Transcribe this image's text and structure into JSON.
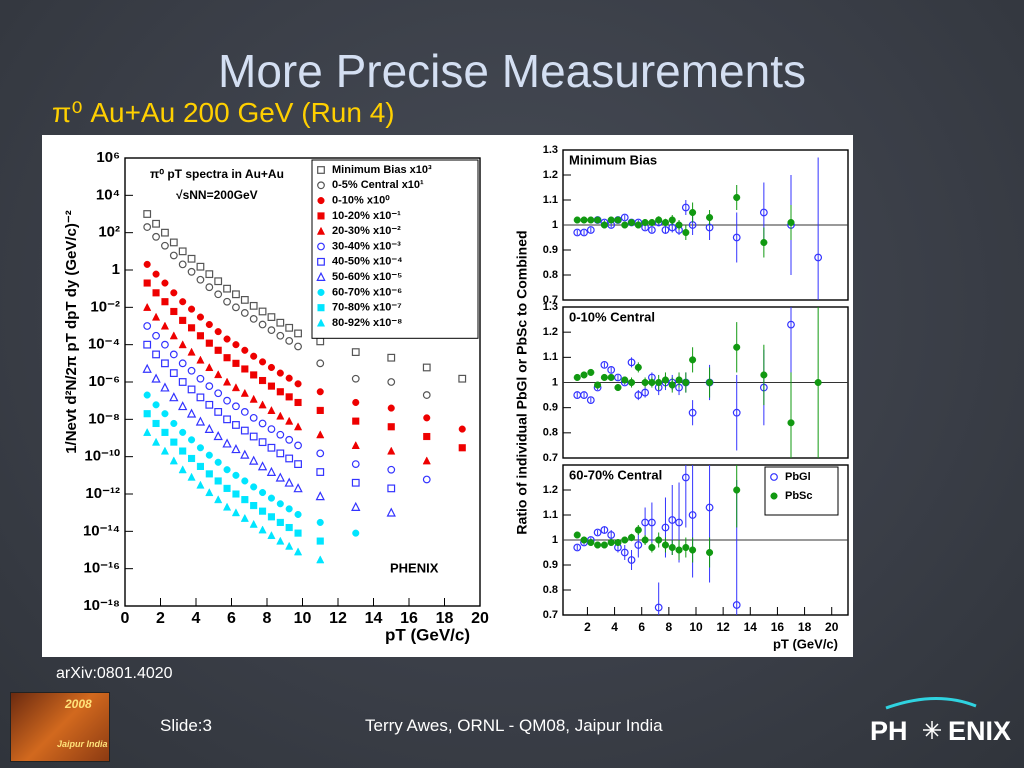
{
  "title": "More Precise Measurements",
  "subtitle": "π⁰ Au+Au 200 GeV (Run 4)",
  "citation": "arXiv:0801.4020",
  "footer": {
    "slide": "Slide:3",
    "author": "Terry Awes, ORNL - QM08, Jaipur India",
    "logo_left_year": "2008",
    "logo_left_text": "Jaipur India",
    "logo_right_left": "PH",
    "logo_right_right": "ENIX"
  },
  "chart_data": [
    {
      "type": "scatter",
      "log_y": true,
      "ylabel": "1/Nevt d²N/2π pT dpT dy (GeV/c)⁻²",
      "xlabel": "pT (GeV/c)",
      "annotations": [
        "π⁰ pT spectra in Au+Au",
        "√sNN=200GeV",
        "PHENIX"
      ],
      "legend": "upper right",
      "xlim": [
        0,
        20
      ],
      "xticks": [
        0,
        2,
        4,
        6,
        8,
        10,
        12,
        14,
        16,
        18,
        20
      ],
      "ylim": [
        1e-18,
        1000000.0
      ],
      "yticks": [
        {
          "value": 1000000.0,
          "label": "10⁶"
        },
        {
          "value": 10000.0,
          "label": "10⁴"
        },
        {
          "value": 100.0,
          "label": "10²"
        },
        1,
        {
          "value": 0.01,
          "label": "10⁻²"
        },
        {
          "value": 0.0001,
          "label": "10⁻⁴"
        },
        {
          "value": 1e-06,
          "label": "10⁻⁶"
        },
        {
          "value": 1e-08,
          "label": "10⁻⁸"
        },
        {
          "value": 1e-10,
          "label": "10⁻¹⁰"
        },
        {
          "value": 1e-12,
          "label": "10⁻¹²"
        },
        {
          "value": 1e-14,
          "label": "10⁻¹⁴"
        },
        {
          "value": 1e-16,
          "label": "10⁻¹⁶"
        },
        {
          "value": 1e-18,
          "label": "10⁻¹⁸"
        }
      ],
      "x": [
        1.25,
        1.75,
        2.25,
        2.75,
        3.25,
        3.75,
        4.25,
        4.75,
        5.25,
        5.75,
        6.25,
        6.75,
        7.25,
        7.75,
        8.25,
        8.75,
        9.25,
        9.75,
        11,
        13,
        15,
        17,
        19
      ],
      "series": [
        {
          "name": "Minimum Bias x10³",
          "color": "#555555",
          "marker": "square-open",
          "values": [
            1000.0,
            300.0,
            100.0,
            30.0,
            10.0,
            4.0,
            1.5,
            0.6,
            0.25,
            0.1,
            0.05,
            0.025,
            0.012,
            0.006,
            0.003,
            0.0015,
            0.0008,
            0.0004,
            0.00015,
            4e-05,
            2e-05,
            6e-06,
            1.5e-06
          ]
        },
        {
          "name": "0-5% Central x10¹",
          "color": "#555555",
          "marker": "circle-open",
          "values": [
            200.0,
            60.0,
            20.0,
            6.0,
            2.0,
            0.8,
            0.3,
            0.12,
            0.05,
            0.02,
            0.01,
            0.005,
            0.0024,
            0.0012,
            0.0006,
            0.0003,
            0.00016,
            8e-05,
            1e-05,
            1.5e-06,
            1e-06,
            2e-07,
            null
          ]
        },
        {
          "name": "0-10% x10⁰",
          "color": "#ee0000",
          "marker": "circle",
          "values": [
            2.0,
            0.6,
            0.2,
            0.06,
            0.02,
            0.008,
            0.003,
            0.0012,
            0.0005,
            0.0002,
            0.0001,
            5e-05,
            2.4e-05,
            1.2e-05,
            6e-06,
            3e-06,
            1.6e-06,
            8e-07,
            3e-07,
            8e-08,
            4e-08,
            1.2e-08,
            3e-09
          ]
        },
        {
          "name": "10-20% x10⁻¹",
          "color": "#ee0000",
          "marker": "square",
          "values": [
            0.2,
            0.06,
            0.02,
            0.006,
            0.002,
            0.0008,
            0.0003,
            0.00012,
            5e-05,
            2e-05,
            1e-05,
            5e-06,
            2.4e-06,
            1.2e-06,
            6e-07,
            3e-07,
            1.6e-07,
            8e-08,
            3e-08,
            8e-09,
            4e-09,
            1.2e-09,
            3e-10
          ]
        },
        {
          "name": "20-30% x10⁻²",
          "color": "#ee0000",
          "marker": "triangle",
          "values": [
            0.01,
            0.003,
            0.001,
            0.0003,
            0.0001,
            4e-05,
            1.5e-05,
            6e-06,
            2.5e-06,
            1e-06,
            5e-07,
            2.5e-07,
            1.2e-07,
            6e-08,
            3e-08,
            1.5e-08,
            8e-09,
            4e-09,
            1.5e-09,
            4e-10,
            2e-10,
            6e-11,
            null
          ]
        },
        {
          "name": "30-40% x10⁻³",
          "color": "#3333ff",
          "marker": "circle-open",
          "values": [
            0.001,
            0.0003,
            0.0001,
            3e-05,
            1e-05,
            4e-06,
            1.5e-06,
            6e-07,
            2.5e-07,
            1e-07,
            5e-08,
            2.5e-08,
            1.2e-08,
            6e-09,
            3e-09,
            1.5e-09,
            8e-10,
            4e-10,
            1.5e-10,
            4e-11,
            2e-11,
            6e-12,
            null
          ]
        },
        {
          "name": "40-50% x10⁻⁴",
          "color": "#3333ff",
          "marker": "square-open",
          "values": [
            0.0001,
            3e-05,
            1e-05,
            3e-06,
            1e-06,
            4e-07,
            1.5e-07,
            6e-08,
            2.5e-08,
            1e-08,
            5e-09,
            2.5e-09,
            1.2e-09,
            6e-10,
            3e-10,
            1.5e-10,
            8e-11,
            4e-11,
            1.5e-11,
            4e-12,
            2e-12,
            null,
            null
          ]
        },
        {
          "name": "50-60% x10⁻⁵",
          "color": "#3333ff",
          "marker": "triangle-open",
          "values": [
            5e-06,
            1.5e-06,
            5e-07,
            1.5e-07,
            5e-08,
            2e-08,
            7.5e-09,
            3e-09,
            1.25e-09,
            5e-10,
            2.5e-10,
            1.25e-10,
            6e-11,
            3e-11,
            1.5e-11,
            7.5e-12,
            4e-12,
            2e-12,
            7.5e-13,
            2e-13,
            1e-13,
            null,
            null
          ]
        },
        {
          "name": "60-70% x10⁻⁶",
          "color": "#00e5ff",
          "marker": "circle",
          "values": [
            2e-07,
            6e-08,
            2e-08,
            6e-09,
            2e-09,
            8e-10,
            3e-10,
            1.2e-10,
            5e-11,
            2e-11,
            1e-11,
            5e-12,
            2.4e-12,
            1.2e-12,
            6e-13,
            3e-13,
            1.6e-13,
            8e-14,
            3e-14,
            8e-15,
            null,
            null,
            null
          ]
        },
        {
          "name": "70-80% x10⁻⁷",
          "color": "#00e5ff",
          "marker": "square",
          "values": [
            2e-08,
            6e-09,
            2e-09,
            6e-10,
            2e-10,
            8e-11,
            3e-11,
            1.2e-11,
            5e-12,
            2e-12,
            1e-12,
            5e-13,
            2.4e-13,
            1.2e-13,
            6e-14,
            3e-14,
            1.6e-14,
            8e-15,
            3e-15,
            null,
            null,
            null,
            null
          ]
        },
        {
          "name": "80-92% x10⁻⁸",
          "color": "#00e5ff",
          "marker": "triangle",
          "values": [
            2e-09,
            6e-10,
            2e-10,
            6e-11,
            2e-11,
            8e-12,
            3e-12,
            1.2e-12,
            5e-13,
            2e-13,
            1e-13,
            5e-14,
            2.4e-14,
            1.2e-14,
            6e-15,
            3e-15,
            1.6e-15,
            8e-16,
            3e-16,
            null,
            null,
            null,
            null
          ]
        }
      ]
    },
    {
      "type": "scatter",
      "title": "Minimum Bias",
      "hline": 1,
      "xlim": [
        0.2,
        21.2
      ],
      "ylim": [
        0.7,
        1.3
      ],
      "yticks": [
        0.7,
        0.8,
        0.9,
        1,
        1.1,
        1.2,
        1.3
      ],
      "x": [
        1.25,
        1.75,
        2.25,
        2.75,
        3.25,
        3.75,
        4.25,
        4.75,
        5.25,
        5.75,
        6.25,
        6.75,
        7.25,
        7.75,
        8.25,
        8.75,
        9.25,
        9.75,
        11,
        13,
        15,
        17,
        19
      ],
      "series": [
        {
          "name": "PbGl",
          "color": "#3333ff",
          "marker": "circle-open",
          "values": [
            0.97,
            0.97,
            0.98,
            1.02,
            1.01,
            1.0,
            1.02,
            1.03,
            1.01,
            1.01,
            0.99,
            0.98,
            1.01,
            0.98,
            0.99,
            0.98,
            1.07,
            1.0,
            0.99,
            0.95,
            1.05,
            1.0,
            0.87
          ],
          "errors": [
            0.01,
            0.01,
            0.01,
            0.01,
            0.01,
            0.01,
            0.01,
            0.01,
            0.01,
            0.01,
            0.01,
            0.01,
            0.015,
            0.015,
            0.02,
            0.02,
            0.03,
            0.04,
            0.05,
            0.1,
            0.12,
            0.2,
            0.4
          ]
        },
        {
          "name": "PbSc",
          "color": "#119911",
          "marker": "circle",
          "values": [
            1.02,
            1.02,
            1.02,
            1.02,
            1.0,
            1.02,
            1.02,
            1.0,
            1.01,
            1.0,
            1.01,
            1.01,
            1.02,
            1.01,
            1.02,
            1.0,
            0.97,
            1.05,
            1.03,
            1.11,
            0.93,
            1.01,
            null
          ],
          "errors": [
            0.01,
            0.01,
            0.01,
            0.01,
            0.01,
            0.01,
            0.01,
            0.01,
            0.01,
            0.01,
            0.01,
            0.01,
            0.015,
            0.015,
            0.02,
            0.02,
            0.03,
            0.04,
            0.03,
            0.05,
            0.06,
            0.07,
            null
          ]
        }
      ]
    },
    {
      "type": "scatter",
      "title": "0-10% Central",
      "hline": 1,
      "ylabel": "Ratio of individual PbGl or PbSc to Combined",
      "xlim": [
        0.2,
        21.2
      ],
      "ylim": [
        0.7,
        1.3
      ],
      "yticks": [
        0.7,
        0.8,
        0.9,
        1,
        1.1,
        1.2,
        1.3
      ],
      "x": [
        1.25,
        1.75,
        2.25,
        2.75,
        3.25,
        3.75,
        4.25,
        4.75,
        5.25,
        5.75,
        6.25,
        6.75,
        7.25,
        7.75,
        8.25,
        8.75,
        9.25,
        9.75,
        11,
        13,
        15,
        17,
        19
      ],
      "series": [
        {
          "name": "PbGl",
          "color": "#3333ff",
          "marker": "circle-open",
          "values": [
            0.95,
            0.95,
            0.93,
            0.98,
            1.07,
            1.05,
            1.02,
            1.0,
            1.08,
            0.95,
            0.96,
            1.02,
            0.98,
            1.0,
            1.0,
            0.98,
            1.0,
            0.88,
            1.0,
            0.88,
            0.98,
            1.23,
            null
          ],
          "errors": [
            0.01,
            0.01,
            0.01,
            0.01,
            0.01,
            0.01,
            0.01,
            0.01,
            0.02,
            0.02,
            0.02,
            0.02,
            0.03,
            0.03,
            0.03,
            0.03,
            0.04,
            0.05,
            0.07,
            0.15,
            0.15,
            0.25,
            null
          ]
        },
        {
          "name": "PbSc",
          "color": "#119911",
          "marker": "circle",
          "values": [
            1.02,
            1.03,
            1.04,
            0.99,
            1.02,
            1.02,
            0.98,
            1.01,
            1.0,
            1.06,
            1.0,
            1.0,
            1.0,
            1.01,
            0.99,
            1.01,
            1.0,
            1.09,
            1.0,
            1.14,
            1.03,
            0.84,
            1.0
          ],
          "errors": [
            0.01,
            0.01,
            0.01,
            0.01,
            0.01,
            0.01,
            0.01,
            0.01,
            0.02,
            0.02,
            0.02,
            0.02,
            0.03,
            0.03,
            0.03,
            0.03,
            0.04,
            0.05,
            0.06,
            0.1,
            0.12,
            0.2,
            0.3
          ]
        }
      ]
    },
    {
      "type": "scatter",
      "title": "60-70% Central",
      "hline": 1,
      "legend": "upper right",
      "xlabel": "pT (GeV/c)",
      "xlim": [
        0.2,
        21.2
      ],
      "xticks": [
        2,
        4,
        6,
        8,
        10,
        12,
        14,
        16,
        18,
        20
      ],
      "ylim": [
        0.7,
        1.3
      ],
      "yticks": [
        0.7,
        0.8,
        0.9,
        1,
        1.1,
        1.2
      ],
      "x": [
        1.25,
        1.75,
        2.25,
        2.75,
        3.25,
        3.75,
        4.25,
        4.75,
        5.25,
        5.75,
        6.25,
        6.75,
        7.25,
        7.75,
        8.25,
        8.75,
        9.25,
        9.75,
        11,
        13,
        15,
        17,
        19
      ],
      "series": [
        {
          "name": "PbGl",
          "color": "#3333ff",
          "marker": "circle-open",
          "values": [
            0.97,
            0.99,
            1.0,
            1.03,
            1.04,
            1.02,
            0.97,
            0.95,
            0.92,
            0.98,
            1.07,
            1.07,
            0.73,
            1.05,
            1.08,
            1.07,
            1.25,
            1.1,
            1.13,
            0.74,
            null,
            null,
            null
          ],
          "errors": [
            0.01,
            0.01,
            0.01,
            0.01,
            0.015,
            0.02,
            0.02,
            0.03,
            0.04,
            0.05,
            0.06,
            0.08,
            0.1,
            0.12,
            0.14,
            0.16,
            0.2,
            0.25,
            0.3,
            0.5,
            null,
            null,
            null
          ]
        },
        {
          "name": "PbSc",
          "color": "#119911",
          "marker": "circle",
          "values": [
            1.02,
            1.0,
            0.99,
            0.98,
            0.98,
            0.99,
            0.99,
            1.0,
            1.01,
            1.04,
            1.0,
            0.97,
            1.0,
            0.98,
            0.97,
            0.96,
            0.97,
            0.96,
            0.95,
            1.2,
            null,
            null,
            null
          ],
          "errors": [
            0.01,
            0.01,
            0.01,
            0.01,
            0.01,
            0.01,
            0.01,
            0.01,
            0.015,
            0.02,
            0.02,
            0.02,
            0.03,
            0.03,
            0.03,
            0.04,
            0.04,
            0.05,
            0.06,
            0.15,
            null,
            null,
            null
          ]
        }
      ]
    }
  ]
}
